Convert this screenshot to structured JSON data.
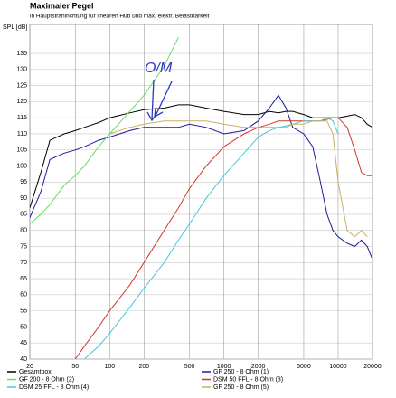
{
  "chart_data": {
    "type": "line",
    "title": "Maximaler Pegel",
    "subtitle": "in Hauptstrahlrichtung für linearen Hub und max. elektr. Belastbarkeit",
    "y_label": "SPL [dB]",
    "annotation": "O/M",
    "log_x": true,
    "grid": true,
    "legend": "bottom",
    "x": [
      20,
      25,
      30,
      40,
      50,
      60,
      80,
      100,
      150,
      200,
      300,
      400,
      500,
      700,
      1000,
      1500,
      2000,
      2500,
      3000,
      3500,
      4000,
      5000,
      6000,
      7000,
      8000,
      9000,
      10000,
      12000,
      14000,
      16000,
      18000,
      20000
    ],
    "xlim": [
      20,
      20000
    ],
    "xticks": [
      20,
      50,
      100,
      200,
      500,
      1000,
      2000,
      5000,
      10000,
      20000
    ],
    "ylim": [
      40,
      144
    ],
    "yticks": [
      40,
      45,
      50,
      55,
      60,
      65,
      70,
      75,
      80,
      85,
      90,
      95,
      100,
      105,
      110,
      115,
      120,
      125,
      130,
      135
    ],
    "series": [
      {
        "name": "Gesamtbox",
        "color": "#000000",
        "values": [
          87,
          98,
          108,
          110,
          111,
          112,
          113.5,
          115,
          116.5,
          117.5,
          118,
          119,
          119,
          118,
          117,
          116,
          116,
          117,
          116.5,
          117,
          117,
          116,
          115,
          115,
          115,
          115,
          115,
          115.5,
          116,
          115,
          113,
          112
        ]
      },
      {
        "name": "GF 250 - 8 Ohm (1)",
        "color": "#1a1a9a",
        "values": [
          84,
          92,
          102,
          104,
          105,
          106,
          108,
          109,
          111,
          112,
          112,
          112,
          113,
          112,
          110,
          111,
          114,
          118,
          122,
          118,
          112,
          110,
          106,
          95,
          85,
          80,
          78,
          76,
          75,
          77,
          75,
          71
        ]
      },
      {
        "name": "GF 200 - 8 Ohm (2)",
        "color": "#66dd66",
        "values": [
          82,
          85,
          88,
          94,
          97,
          100,
          106,
          110,
          117,
          122,
          131,
          140,
          null,
          null,
          null,
          null,
          null,
          null,
          null,
          null,
          null,
          null,
          null,
          null,
          null,
          null,
          null,
          null,
          null,
          null,
          null,
          null
        ]
      },
      {
        "name": "DSM 50 FFL - 8 Ohm (3)",
        "color": "#d03a2a",
        "values": [
          null,
          null,
          null,
          null,
          40,
          44,
          50,
          55,
          63,
          70,
          80,
          87,
          93,
          100,
          106,
          110,
          112,
          113,
          114,
          114,
          114,
          114,
          114,
          114,
          114.5,
          115,
          115,
          112,
          105,
          98,
          97,
          97
        ]
      },
      {
        "name": "DSM 25 FFL - 8 Ohm (4)",
        "color": "#44c8d8",
        "values": [
          null,
          null,
          null,
          null,
          null,
          40,
          44,
          48,
          56,
          62,
          70,
          77,
          82,
          90,
          97,
          104,
          109,
          111,
          112,
          112.5,
          113,
          114,
          114,
          114,
          115,
          114,
          110,
          null,
          null,
          null,
          null,
          null
        ]
      },
      {
        "name": "GF 250 - 8 Ohm (5)",
        "color": "#c8b060",
        "values": [
          null,
          null,
          null,
          null,
          null,
          null,
          null,
          110,
          112,
          113,
          114,
          114,
          114,
          114,
          113,
          112,
          112,
          112,
          112,
          112,
          113,
          113,
          114,
          114,
          114,
          110,
          95,
          80,
          78,
          80,
          78,
          null
        ]
      }
    ]
  }
}
